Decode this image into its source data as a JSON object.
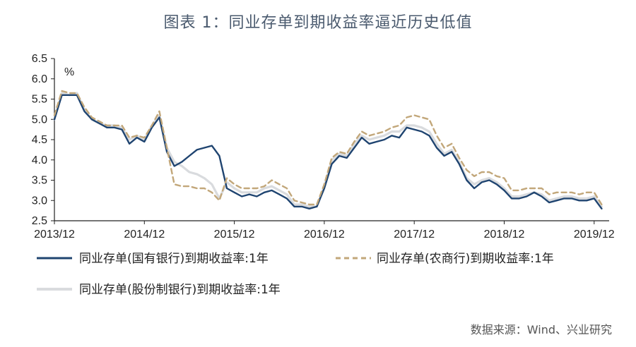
{
  "title": "图表 1：同业存单到期收益率逼近历史低值",
  "source": "数据来源：Wind、兴业研究",
  "colors": {
    "state_owned": "#1f4470",
    "rural_commercial": "#c2a77a",
    "joint_stock": "#d9dbde",
    "title": "#4a5a6e",
    "axis": "#222222"
  },
  "chart_data": {
    "type": "line",
    "title": "图表 1：同业存单到期收益率逼近历史低值",
    "ylabel": "%",
    "xlabel": "",
    "ylim": [
      2.5,
      6.5
    ],
    "yticks": [
      "2.5",
      "3.0",
      "3.5",
      "4.0",
      "4.5",
      "5.0",
      "5.5",
      "6.0",
      "6.5"
    ],
    "xlim": [
      "2013/12",
      "2020/02"
    ],
    "xticks": [
      "2013/12",
      "2014/12",
      "2015/12",
      "2016/12",
      "2017/12",
      "2018/12",
      "2019/12"
    ],
    "grid": false,
    "legend_position": "bottom",
    "series": [
      {
        "name": "同业存单(国有银行)到期收益率:1年",
        "style": "solid",
        "color": "#1f4470",
        "x": [
          "2013/12",
          "2014/01",
          "2014/02",
          "2014/03",
          "2014/04",
          "2014/05",
          "2014/06",
          "2014/07",
          "2014/08",
          "2014/09",
          "2014/10",
          "2014/11",
          "2014/12",
          "2015/01",
          "2015/02",
          "2015/03",
          "2015/04",
          "2015/05",
          "2015/06",
          "2015/07",
          "2015/08",
          "2015/09",
          "2015/10",
          "2015/11",
          "2015/12",
          "2016/01",
          "2016/02",
          "2016/03",
          "2016/04",
          "2016/05",
          "2016/06",
          "2016/07",
          "2016/08",
          "2016/09",
          "2016/10",
          "2016/11",
          "2016/12",
          "2017/01",
          "2017/02",
          "2017/03",
          "2017/04",
          "2017/05",
          "2017/06",
          "2017/07",
          "2017/08",
          "2017/09",
          "2017/10",
          "2017/11",
          "2017/12",
          "2018/01",
          "2018/02",
          "2018/03",
          "2018/04",
          "2018/05",
          "2018/06",
          "2018/07",
          "2018/08",
          "2018/09",
          "2018/10",
          "2018/11",
          "2018/12",
          "2019/01",
          "2019/02",
          "2019/03",
          "2019/04",
          "2019/05",
          "2019/06",
          "2019/07",
          "2019/08",
          "2019/09",
          "2019/10",
          "2019/11",
          "2019/12",
          "2020/01"
        ],
        "y": [
          5.0,
          5.6,
          5.6,
          5.6,
          5.2,
          5.0,
          4.9,
          4.8,
          4.8,
          4.75,
          4.4,
          4.55,
          4.45,
          4.8,
          5.05,
          4.2,
          3.85,
          3.95,
          4.1,
          4.25,
          4.3,
          4.35,
          4.1,
          3.3,
          3.2,
          3.1,
          3.15,
          3.1,
          3.2,
          3.25,
          3.15,
          3.05,
          2.85,
          2.85,
          2.8,
          2.85,
          3.3,
          3.9,
          4.1,
          4.05,
          4.3,
          4.55,
          4.4,
          4.45,
          4.5,
          4.6,
          4.55,
          4.8,
          4.75,
          4.7,
          4.6,
          4.3,
          4.1,
          4.2,
          3.9,
          3.5,
          3.3,
          3.45,
          3.5,
          3.4,
          3.25,
          3.05,
          3.05,
          3.1,
          3.2,
          3.1,
          2.95,
          3.0,
          3.05,
          3.05,
          3.0,
          3.0,
          3.05,
          2.8
        ]
      },
      {
        "name": "同业存单(农商行)到期收益率:1年",
        "style": "dashed",
        "color": "#c2a77a",
        "x": [
          "2013/12",
          "2014/01",
          "2014/02",
          "2014/03",
          "2014/04",
          "2014/05",
          "2014/06",
          "2014/07",
          "2014/08",
          "2014/09",
          "2014/10",
          "2014/11",
          "2014/12",
          "2015/01",
          "2015/02",
          "2015/03",
          "2015/04",
          "2015/05",
          "2015/06",
          "2015/07",
          "2015/08",
          "2015/09",
          "2015/10",
          "2015/11",
          "2015/12",
          "2016/01",
          "2016/02",
          "2016/03",
          "2016/04",
          "2016/05",
          "2016/06",
          "2016/07",
          "2016/08",
          "2016/09",
          "2016/10",
          "2016/11",
          "2016/12",
          "2017/01",
          "2017/02",
          "2017/03",
          "2017/04",
          "2017/05",
          "2017/06",
          "2017/07",
          "2017/08",
          "2017/09",
          "2017/10",
          "2017/11",
          "2017/12",
          "2018/01",
          "2018/02",
          "2018/03",
          "2018/04",
          "2018/05",
          "2018/06",
          "2018/07",
          "2018/08",
          "2018/09",
          "2018/10",
          "2018/11",
          "2018/12",
          "2019/01",
          "2019/02",
          "2019/03",
          "2019/04",
          "2019/05",
          "2019/06",
          "2019/07",
          "2019/08",
          "2019/09",
          "2019/10",
          "2019/11",
          "2019/12",
          "2020/01"
        ],
        "y": [
          5.1,
          5.7,
          5.65,
          5.65,
          5.3,
          5.05,
          4.95,
          4.85,
          4.85,
          4.85,
          4.55,
          4.6,
          4.55,
          4.85,
          5.2,
          4.3,
          3.4,
          3.35,
          3.35,
          3.3,
          3.3,
          3.2,
          3.0,
          3.55,
          3.4,
          3.3,
          3.3,
          3.3,
          3.35,
          3.5,
          3.4,
          3.3,
          3.0,
          2.95,
          2.9,
          2.9,
          3.4,
          4.05,
          4.2,
          4.15,
          4.45,
          4.7,
          4.6,
          4.65,
          4.7,
          4.8,
          4.85,
          5.05,
          5.1,
          5.05,
          5.0,
          4.6,
          4.3,
          4.4,
          4.05,
          3.75,
          3.6,
          3.7,
          3.7,
          3.6,
          3.55,
          3.25,
          3.25,
          3.3,
          3.3,
          3.3,
          3.15,
          3.2,
          3.2,
          3.2,
          3.15,
          3.2,
          3.2,
          2.9
        ]
      },
      {
        "name": "同业存单(股份制银行)到期收益率:1年",
        "style": "solid",
        "color": "#d9dbde",
        "x": [
          "2013/12",
          "2014/01",
          "2014/02",
          "2014/03",
          "2014/04",
          "2014/05",
          "2014/06",
          "2014/07",
          "2014/08",
          "2014/09",
          "2014/10",
          "2014/11",
          "2014/12",
          "2015/01",
          "2015/02",
          "2015/03",
          "2015/04",
          "2015/05",
          "2015/06",
          "2015/07",
          "2015/08",
          "2015/09",
          "2015/10",
          "2015/11",
          "2015/12",
          "2016/01",
          "2016/02",
          "2016/03",
          "2016/04",
          "2016/05",
          "2016/06",
          "2016/07",
          "2016/08",
          "2016/09",
          "2016/10",
          "2016/11",
          "2016/12",
          "2017/01",
          "2017/02",
          "2017/03",
          "2017/04",
          "2017/05",
          "2017/06",
          "2017/07",
          "2017/08",
          "2017/09",
          "2017/10",
          "2017/11",
          "2017/12",
          "2018/01",
          "2018/02",
          "2018/03",
          "2018/04",
          "2018/05",
          "2018/06",
          "2018/07",
          "2018/08",
          "2018/09",
          "2018/10",
          "2018/11",
          "2018/12",
          "2019/01",
          "2019/02",
          "2019/03",
          "2019/04",
          "2019/05",
          "2019/06",
          "2019/07",
          "2019/08",
          "2019/09",
          "2019/10",
          "2019/11",
          "2019/12",
          "2020/01"
        ],
        "y": [
          5.0,
          5.65,
          5.6,
          5.65,
          5.25,
          5.0,
          4.9,
          4.85,
          4.85,
          4.8,
          4.5,
          4.6,
          4.5,
          4.85,
          5.1,
          4.3,
          3.95,
          3.85,
          3.7,
          3.65,
          3.55,
          3.4,
          3.05,
          3.45,
          3.3,
          3.2,
          3.2,
          3.2,
          3.3,
          3.35,
          3.25,
          3.15,
          2.9,
          2.9,
          2.85,
          2.85,
          3.35,
          4.0,
          4.15,
          4.1,
          4.4,
          4.6,
          4.5,
          4.55,
          4.6,
          4.7,
          4.7,
          4.85,
          4.85,
          4.8,
          4.7,
          4.4,
          4.15,
          4.25,
          3.95,
          3.55,
          3.4,
          3.5,
          3.55,
          3.45,
          3.3,
          3.1,
          3.1,
          3.15,
          3.2,
          3.15,
          3.0,
          3.05,
          3.1,
          3.1,
          3.05,
          3.05,
          3.1,
          2.85
        ]
      }
    ]
  }
}
